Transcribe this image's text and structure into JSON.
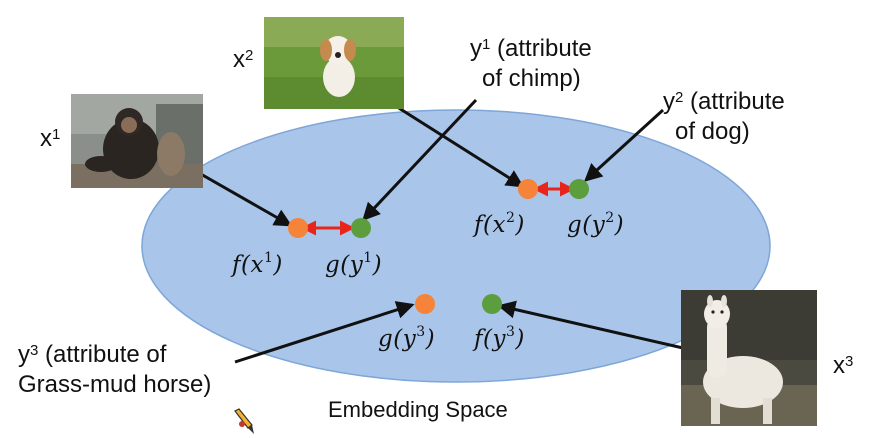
{
  "images": {
    "x1": {
      "label_var": "x",
      "label_sup": "1",
      "depicts": "chimp"
    },
    "x2": {
      "label_var": "x",
      "label_sup": "2",
      "depicts": "dog"
    },
    "x3": {
      "label_var": "x",
      "label_sup": "3",
      "depicts": "grass-mud horse"
    }
  },
  "attributes": {
    "y1": {
      "var": "y",
      "sup": "1",
      "line1": "(attribute",
      "line2": "of chimp)"
    },
    "y2": {
      "var": "y",
      "sup": "2",
      "line1": "(attribute",
      "line2": "of dog)"
    },
    "y3": {
      "var": "y",
      "sup": "3",
      "line1": "(attribute of",
      "line2": "Grass-mud horse)"
    }
  },
  "embeddings": {
    "f_x1": {
      "fn": "f(x",
      "sup": "1",
      "close": ")"
    },
    "g_y1": {
      "fn": "g(y",
      "sup": "1",
      "close": ")"
    },
    "f_x2": {
      "fn": "f(x",
      "sup": "2",
      "close": ")"
    },
    "g_y2": {
      "fn": "g(y",
      "sup": "2",
      "close": ")"
    },
    "g_y3": {
      "fn": "g(y",
      "sup": "3",
      "close": ")"
    },
    "f_y3": {
      "fn": "f(y",
      "sup": "3",
      "close": ")"
    }
  },
  "space_label": "Embedding Space",
  "colors": {
    "ellipse_fill": "#a9c6ea",
    "ellipse_stroke": "#7ea6d8",
    "orange_dot": "#f5833a",
    "green_dot": "#5c9e3e",
    "red_arrow": "#e8251b",
    "arrow": "#111111"
  }
}
